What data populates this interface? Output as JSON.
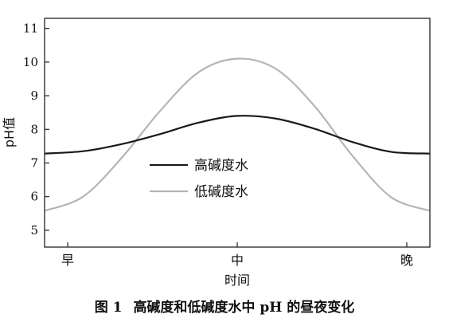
{
  "chart_data": {
    "type": "line",
    "ylabel": "pH值",
    "xlabel": "时间",
    "x_categories": [
      "早",
      "中",
      "晚"
    ],
    "yticks": [
      5,
      6,
      7,
      8,
      9,
      10,
      11
    ],
    "ylim": [
      4.5,
      11.3
    ],
    "grid": false,
    "legend_position": "center",
    "series": [
      {
        "name": "高碱度水",
        "color": "#1a1a1a",
        "points": [
          {
            "x": 0.0,
            "y": 7.28
          },
          {
            "x": 0.1,
            "y": 7.35
          },
          {
            "x": 0.2,
            "y": 7.56
          },
          {
            "x": 0.3,
            "y": 7.86
          },
          {
            "x": 0.4,
            "y": 8.2
          },
          {
            "x": 0.5,
            "y": 8.4
          },
          {
            "x": 0.6,
            "y": 8.32
          },
          {
            "x": 0.7,
            "y": 8.02
          },
          {
            "x": 0.8,
            "y": 7.62
          },
          {
            "x": 0.9,
            "y": 7.33
          },
          {
            "x": 1.0,
            "y": 7.28
          }
        ]
      },
      {
        "name": "低碱度水",
        "color": "#b5b5b5",
        "points": [
          {
            "x": 0.0,
            "y": 5.58
          },
          {
            "x": 0.1,
            "y": 6.0
          },
          {
            "x": 0.2,
            "y": 7.15
          },
          {
            "x": 0.3,
            "y": 8.55
          },
          {
            "x": 0.4,
            "y": 9.7
          },
          {
            "x": 0.5,
            "y": 10.1
          },
          {
            "x": 0.6,
            "y": 9.8
          },
          {
            "x": 0.7,
            "y": 8.7
          },
          {
            "x": 0.8,
            "y": 7.2
          },
          {
            "x": 0.9,
            "y": 5.98
          },
          {
            "x": 1.0,
            "y": 5.58
          }
        ]
      }
    ]
  },
  "caption": {
    "figure_number": "图 1",
    "title": "高碱度和低碱度水中 pH 的昼夜变化"
  }
}
